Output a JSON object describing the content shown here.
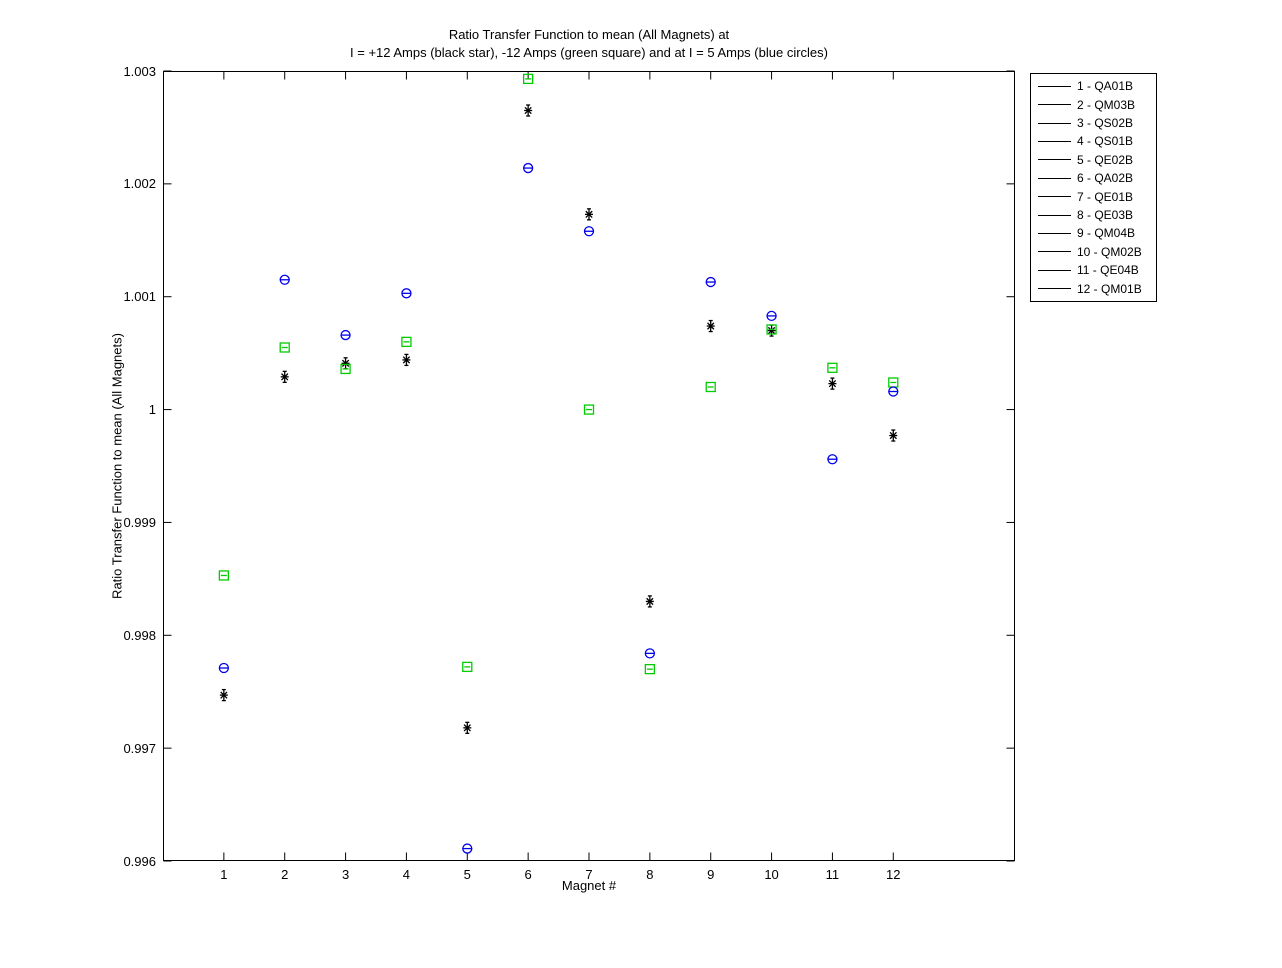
{
  "chart_data": {
    "type": "scatter",
    "title_line1": "Ratio Transfer Function to mean (All Magnets) at",
    "title_line2": "I = +12 Amps (black star), -12 Amps (green square) and at I = 5 Amps (blue circles)",
    "xlabel": "Magnet #",
    "ylabel": "Ratio Transfer Function to mean (All Magnets)",
    "xlim": [
      0,
      14
    ],
    "ylim": [
      0.996,
      1.003
    ],
    "grid": false,
    "legend_position": "outside-right",
    "x_ticks": [
      1,
      2,
      3,
      4,
      5,
      6,
      7,
      8,
      9,
      10,
      11,
      12
    ],
    "y_ticks": [
      0.996,
      0.997,
      0.998,
      0.999,
      1.0,
      1.001,
      1.002,
      1.003
    ],
    "y_tick_labels": [
      "0.996",
      "0.997",
      "0.998",
      "0.999",
      "1",
      "1.001",
      "1.002",
      "1.003"
    ],
    "categories": [
      1,
      2,
      3,
      4,
      5,
      6,
      7,
      8,
      9,
      10,
      11,
      12
    ],
    "series": [
      {
        "name": "I = +12 Amps (black star)",
        "marker": "star",
        "color": "#000000",
        "values": [
          0.99747,
          1.00029,
          1.00041,
          1.00044,
          0.99718,
          1.00265,
          1.00173,
          0.9983,
          1.00074,
          1.0007,
          1.00023,
          0.99977
        ]
      },
      {
        "name": "I = -12 Amps (green square)",
        "marker": "square",
        "color": "#00CC00",
        "values": [
          0.99853,
          1.00055,
          1.00036,
          1.0006,
          0.99772,
          1.00293,
          1.0,
          0.9977,
          1.0002,
          1.00071,
          1.00037,
          1.00024
        ]
      },
      {
        "name": "I = 5 Amps (blue circles)",
        "marker": "circle",
        "color": "#0000EE",
        "values": [
          0.99771,
          1.00115,
          1.00066,
          1.00103,
          0.99611,
          1.00214,
          1.00158,
          0.99784,
          1.00113,
          1.00083,
          0.99956,
          1.00016
        ]
      }
    ],
    "legend_entries": [
      "1 - QA01B",
      "2 - QM03B",
      "3 - QS02B",
      "4 - QS01B",
      "5 - QE02B",
      "6 - QA02B",
      "7 - QE01B",
      "8 - QE03B",
      "9 - QM04B",
      "10 - QM02B",
      "11 - QE04B",
      "12 - QM01B"
    ]
  }
}
